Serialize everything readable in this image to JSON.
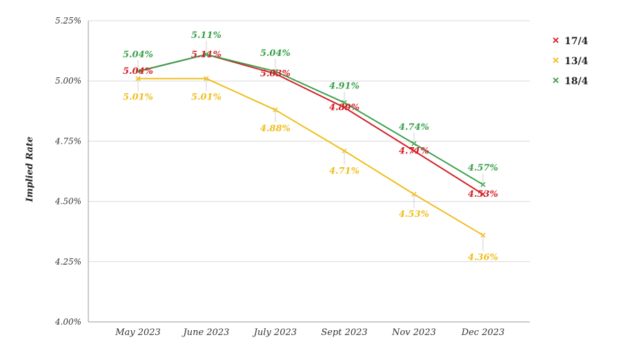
{
  "chart_data": {
    "type": "line",
    "ylabel": "Implied Rate",
    "categories": [
      "May 2023",
      "June 2023",
      "July 2023",
      "Sept 2023",
      "Nov 2023",
      "Dec 2023"
    ],
    "ylim": [
      4.0,
      5.25
    ],
    "yticks": [
      "4.00%",
      "4.25%",
      "4.50%",
      "4.75%",
      "5.00%",
      "5.25%"
    ],
    "yticks_values": [
      4.0,
      4.25,
      4.5,
      4.75,
      5.0,
      5.25
    ],
    "grid": true,
    "legend": "right",
    "series": [
      {
        "name": "17/4",
        "color": "#d32027",
        "values": [
          5.04,
          5.11,
          5.03,
          4.89,
          4.71,
          4.53
        ],
        "labels": [
          "5.04%",
          "5.11%",
          "5.03%",
          "4.89%",
          "4.71%",
          "4.53%"
        ]
      },
      {
        "name": "13/4",
        "color": "#f0bd1b",
        "values": [
          5.01,
          5.01,
          4.88,
          4.71,
          4.53,
          4.36
        ],
        "labels": [
          "5.01%",
          "5.01%",
          "4.88%",
          "4.71%",
          "4.53%",
          "4.36%"
        ]
      },
      {
        "name": "18/4",
        "color": "#3aa04a",
        "values": [
          5.04,
          5.11,
          5.04,
          4.91,
          4.74,
          4.57
        ],
        "labels": [
          "5.04%",
          "5.11%",
          "5.04%",
          "4.91%",
          "4.74%",
          "4.57%"
        ]
      }
    ]
  },
  "legend_marker": "✕"
}
